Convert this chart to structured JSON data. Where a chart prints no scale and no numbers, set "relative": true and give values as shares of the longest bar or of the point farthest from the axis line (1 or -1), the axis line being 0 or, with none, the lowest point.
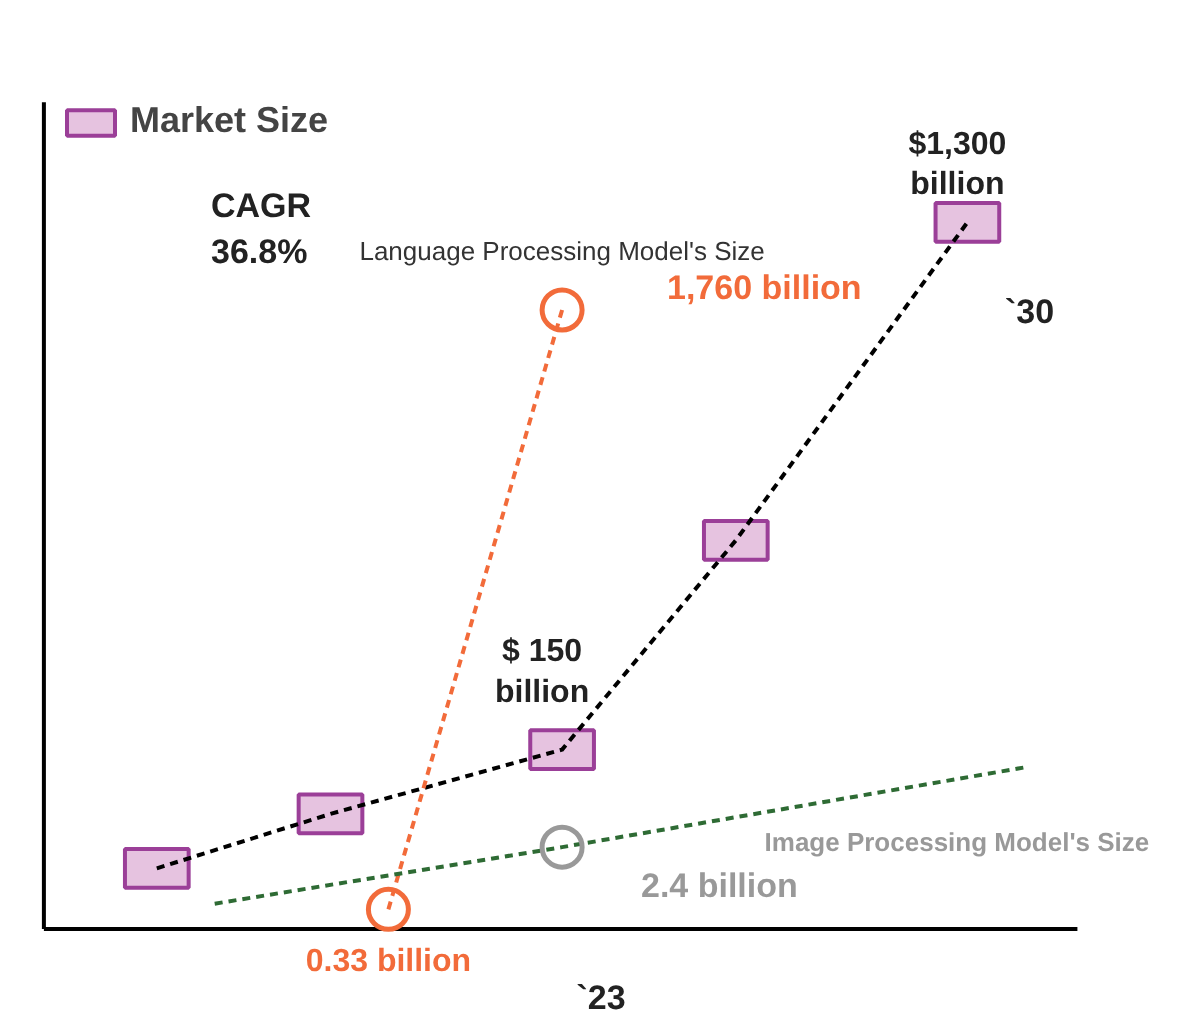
{
  "chart_data": {
    "type": "line",
    "relative": true,
    "grid": false,
    "legend": "top left",
    "categories": [
      null,
      null,
      null,
      null,
      null,
      null,
      null,
      null,
      null,
      null,
      null,
      null,
      null,
      null,
      null,
      null
    ],
    "series": [
      {
        "name": "Market Size",
        "color": "#9b3f98",
        "values": [
          0.086,
          null,
          null,
          0.163,
          null,
          null,
          null,
          0.254,
          null,
          null,
          0.55,
          null,
          null,
          null,
          1.0,
          null
        ],
        "marker": "square",
        "line_style": "dashed"
      },
      {
        "name": "Language Processing Model's Size",
        "color": "#f26b3a",
        "values": [
          null,
          null,
          null,
          null,
          0.028,
          null,
          null,
          0.876,
          null,
          null,
          null,
          null,
          null,
          null,
          null,
          null
        ],
        "marker": "circle",
        "line_style": "dashed"
      },
      {
        "name": "Image Processing Model's Size",
        "color": "#2e6b34",
        "values": [
          null,
          0.036,
          null,
          null,
          null,
          null,
          null,
          0.116,
          null,
          null,
          null,
          null,
          null,
          null,
          null,
          0.229
        ],
        "marker": "none",
        "line_style": "dashed"
      },
      {
        "color": "#999999",
        "values": [
          null,
          null,
          null,
          null,
          null,
          null,
          null,
          0.116,
          null,
          null,
          null,
          null,
          null,
          null,
          null,
          null
        ],
        "marker": "circle"
      }
    ],
    "annotations": [
      "CAGR\n36.8%",
      {
        "text": "$1,300\nbillion",
        "y": 1.0
      },
      "`30",
      {
        "text": "$ 150\nbillion",
        "y": 0.254
      },
      "1,760 billion",
      {
        "text": "0.33 billion",
        "y": 0.028
      },
      "2.4 billion",
      "`23"
    ]
  }
}
